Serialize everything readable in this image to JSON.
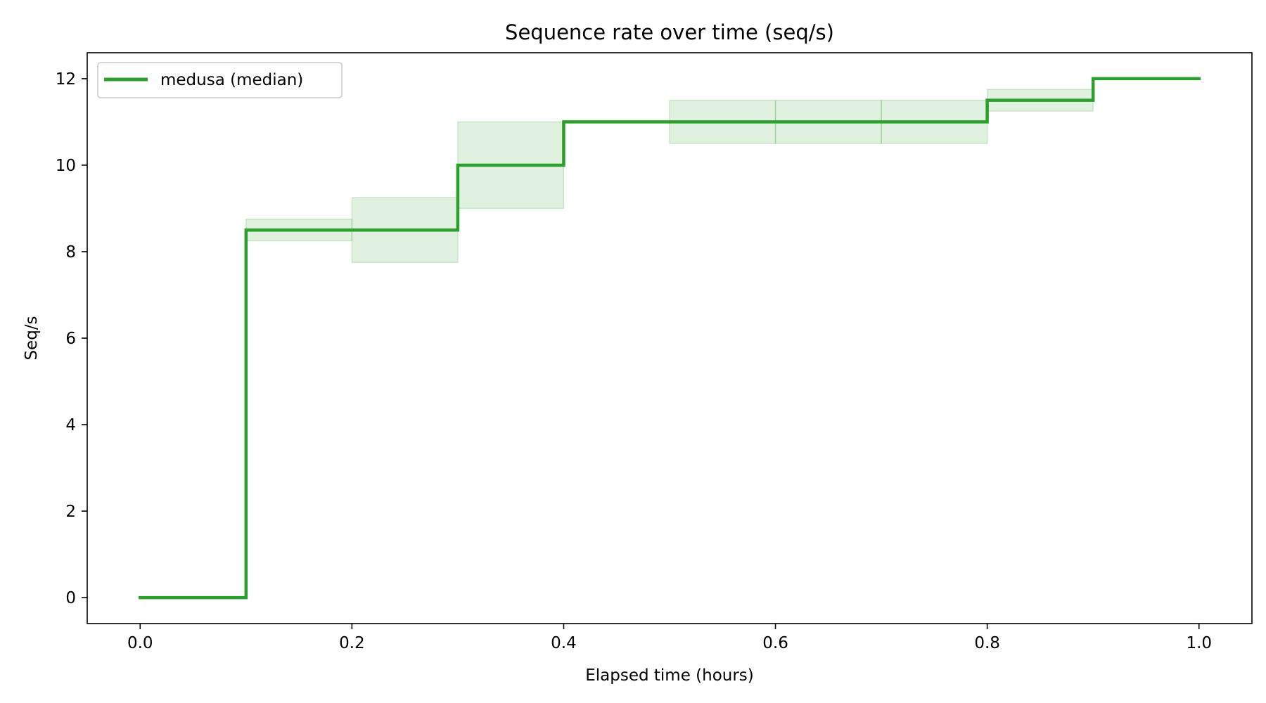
{
  "chart_data": {
    "type": "line",
    "title": "Sequence rate over time (seq/s)",
    "xlabel": "Elapsed time (hours)",
    "ylabel": "Seq/s",
    "xlim": [
      -0.05,
      1.05
    ],
    "ylim": [
      -0.6,
      12.6
    ],
    "xticks": [
      0.0,
      0.2,
      0.4,
      0.6,
      0.8,
      1.0
    ],
    "xtick_labels": [
      "0.0",
      "0.2",
      "0.4",
      "0.6",
      "0.8",
      "1.0"
    ],
    "yticks": [
      0,
      2,
      4,
      6,
      8,
      10,
      12
    ],
    "ytick_labels": [
      "0",
      "2",
      "4",
      "6",
      "8",
      "10",
      "12"
    ],
    "grid": false,
    "legend_position": "top-left",
    "step": "post",
    "series": [
      {
        "name": "medusa (median)",
        "color": "#2ca02c",
        "x": [
          0.0,
          0.1,
          0.2,
          0.3,
          0.4,
          0.5,
          0.6,
          0.7,
          0.8,
          0.9,
          1.0
        ],
        "y": [
          0,
          8.5,
          8.5,
          10,
          11,
          11,
          11,
          11,
          11.5,
          12,
          12
        ],
        "band_low": [
          0,
          8.25,
          7.75,
          9.0,
          11,
          10.5,
          10.5,
          10.5,
          11.25,
          12,
          12
        ],
        "band_high": [
          0,
          8.75,
          9.25,
          11.0,
          11,
          11.5,
          11.5,
          11.5,
          11.75,
          12,
          12
        ]
      }
    ]
  }
}
